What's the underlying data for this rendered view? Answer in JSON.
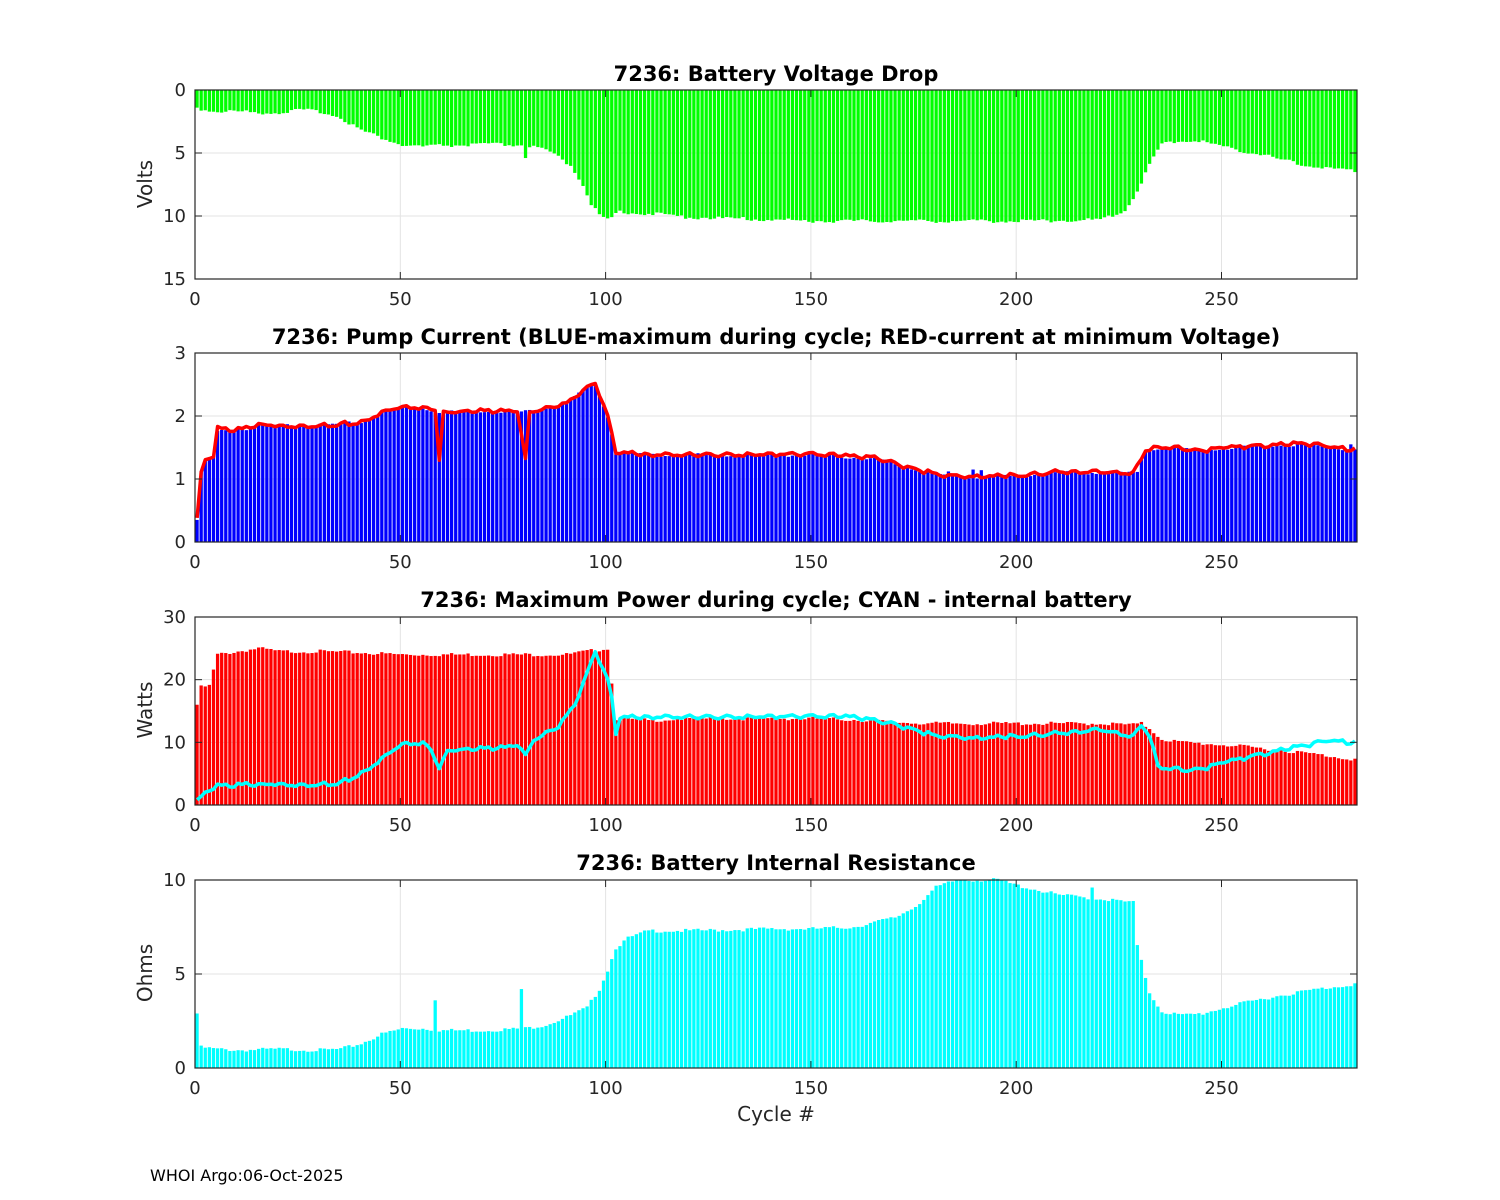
{
  "footer": "WHOI Argo:06-Oct-2025",
  "xlabel": "Cycle #",
  "colors": {
    "voltage": "#00ff00",
    "pump_bar": "#0000ff",
    "pump_line": "#ff0000",
    "power_bar": "#ff0000",
    "power_line": "#00ffff",
    "resistance": "#00ffff"
  },
  "chart_data": [
    {
      "id": "voltage",
      "type": "bar",
      "title": "7236: Battery Voltage Drop",
      "ylabel": "Volts",
      "xlim": [
        0,
        283
      ],
      "ylim": [
        0,
        15
      ],
      "y_reversed": true,
      "xticks": [
        0,
        50,
        100,
        150,
        200,
        250
      ],
      "yticks": [
        0,
        5,
        10,
        15
      ],
      "grid": true,
      "series": [
        {
          "name": "voltage drop",
          "color": "#00ff00",
          "profile": [
            [
              0,
              1.4
            ],
            [
              2,
              1.6
            ],
            [
              5,
              1.7
            ],
            [
              10,
              1.7
            ],
            [
              15,
              1.8
            ],
            [
              20,
              1.8
            ],
            [
              25,
              1.6
            ],
            [
              30,
              1.7
            ],
            [
              35,
              2.2
            ],
            [
              40,
              3.2
            ],
            [
              45,
              3.8
            ],
            [
              50,
              4.4
            ],
            [
              55,
              4.5
            ],
            [
              60,
              4.4
            ],
            [
              65,
              4.4
            ],
            [
              70,
              4.3
            ],
            [
              80,
              4.4
            ],
            [
              85,
              4.8
            ],
            [
              88,
              5.3
            ],
            [
              91,
              6.0
            ],
            [
              94,
              7.5
            ],
            [
              96,
              9.0
            ],
            [
              98,
              10.0
            ],
            [
              100,
              10.3
            ],
            [
              103,
              9.7
            ],
            [
              110,
              9.8
            ],
            [
              120,
              10.1
            ],
            [
              150,
              10.4
            ],
            [
              200,
              10.4
            ],
            [
              220,
              10.3
            ],
            [
              226,
              9.6
            ],
            [
              229,
              8.0
            ],
            [
              232,
              5.9
            ],
            [
              235,
              4.3
            ],
            [
              240,
              4.0
            ],
            [
              245,
              4.1
            ],
            [
              250,
              4.5
            ],
            [
              260,
              5.2
            ],
            [
              270,
              6.0
            ],
            [
              283,
              6.5
            ]
          ],
          "spikes": [
            [
              80,
              5.4
            ]
          ]
        }
      ]
    },
    {
      "id": "pump",
      "type": "bar",
      "title": "7236: Pump Current (BLUE-maximum during cycle; RED-current at minimum Voltage)",
      "ylabel": "",
      "xlim": [
        0,
        283
      ],
      "ylim": [
        0,
        3
      ],
      "xticks": [
        0,
        50,
        100,
        150,
        200,
        250
      ],
      "yticks": [
        0,
        1,
        2,
        3
      ],
      "grid": true,
      "series": [
        {
          "name": "BLUE-maximum during cycle",
          "kind": "bar",
          "color": "#0000ff",
          "profile": [
            [
              0,
              0.35
            ],
            [
              1,
              1.1
            ],
            [
              2,
              1.3
            ],
            [
              4,
              1.35
            ],
            [
              5,
              1.75
            ],
            [
              8,
              1.78
            ],
            [
              12,
              1.8
            ],
            [
              15,
              1.85
            ],
            [
              20,
              1.85
            ],
            [
              30,
              1.85
            ],
            [
              40,
              1.9
            ],
            [
              45,
              2.05
            ],
            [
              50,
              2.15
            ],
            [
              55,
              2.12
            ],
            [
              60,
              2.06
            ],
            [
              70,
              2.08
            ],
            [
              80,
              2.07
            ],
            [
              90,
              2.2
            ],
            [
              95,
              2.45
            ],
            [
              97,
              2.5
            ],
            [
              100,
              2.0
            ],
            [
              102,
              1.42
            ],
            [
              110,
              1.38
            ],
            [
              150,
              1.38
            ],
            [
              165,
              1.32
            ],
            [
              175,
              1.15
            ],
            [
              182,
              1.05
            ],
            [
              190,
              1.02
            ],
            [
              200,
              1.05
            ],
            [
              210,
              1.1
            ],
            [
              226,
              1.1
            ],
            [
              229,
              1.1
            ],
            [
              231,
              1.45
            ],
            [
              235,
              1.5
            ],
            [
              245,
              1.45
            ],
            [
              250,
              1.48
            ],
            [
              260,
              1.52
            ],
            [
              270,
              1.55
            ],
            [
              283,
              1.45
            ]
          ],
          "spikes": [
            [
              189,
              1.15
            ],
            [
              191,
              1.14
            ],
            [
              183,
              1.12
            ],
            [
              281,
              1.55
            ]
          ]
        },
        {
          "name": "RED-current at minimum Voltage",
          "kind": "line",
          "color": "#ff0000",
          "profile": [
            [
              0,
              0.35
            ],
            [
              1,
              1.1
            ],
            [
              2,
              1.3
            ],
            [
              4,
              1.35
            ],
            [
              5,
              1.8
            ],
            [
              8,
              1.78
            ],
            [
              12,
              1.8
            ],
            [
              15,
              1.87
            ],
            [
              20,
              1.85
            ],
            [
              30,
              1.85
            ],
            [
              40,
              1.9
            ],
            [
              45,
              2.07
            ],
            [
              50,
              2.15
            ],
            [
              55,
              2.12
            ],
            [
              58,
              2.1
            ],
            [
              59,
              1.3
            ],
            [
              60,
              2.06
            ],
            [
              70,
              2.08
            ],
            [
              78,
              2.08
            ],
            [
              80,
              1.3
            ],
            [
              81,
              2.05
            ],
            [
              90,
              2.2
            ],
            [
              95,
              2.45
            ],
            [
              97,
              2.52
            ],
            [
              100,
              2.0
            ],
            [
              102,
              1.43
            ],
            [
              110,
              1.38
            ],
            [
              150,
              1.4
            ],
            [
              165,
              1.33
            ],
            [
              175,
              1.15
            ],
            [
              182,
              1.05
            ],
            [
              190,
              1.03
            ],
            [
              200,
              1.06
            ],
            [
              210,
              1.12
            ],
            [
              228,
              1.1
            ],
            [
              231,
              1.45
            ],
            [
              235,
              1.52
            ],
            [
              245,
              1.45
            ],
            [
              250,
              1.5
            ],
            [
              260,
              1.53
            ],
            [
              270,
              1.56
            ],
            [
              283,
              1.45
            ]
          ]
        }
      ]
    },
    {
      "id": "power",
      "type": "bar",
      "title": "7236: Maximum Power during cycle; CYAN - internal battery",
      "ylabel": "Watts",
      "xlim": [
        0,
        283
      ],
      "ylim": [
        0,
        30
      ],
      "xticks": [
        0,
        50,
        100,
        150,
        200,
        250
      ],
      "yticks": [
        0,
        10,
        20,
        30
      ],
      "grid": true,
      "series": [
        {
          "name": "maximum power",
          "kind": "bar",
          "color": "#ff0000",
          "profile": [
            [
              0,
              16
            ],
            [
              1,
              18.8
            ],
            [
              3,
              19
            ],
            [
              5,
              24
            ],
            [
              10,
              24.5
            ],
            [
              15,
              25
            ],
            [
              20,
              24.5
            ],
            [
              30,
              24.5
            ],
            [
              40,
              24.3
            ],
            [
              50,
              24
            ],
            [
              60,
              24
            ],
            [
              70,
              24
            ],
            [
              80,
              24
            ],
            [
              90,
              24
            ],
            [
              95,
              24.5
            ],
            [
              100,
              25
            ],
            [
              102,
              13.8
            ],
            [
              110,
              13.5
            ],
            [
              120,
              13.8
            ],
            [
              150,
              13.8
            ],
            [
              160,
              13.6
            ],
            [
              170,
              13.2
            ],
            [
              180,
              13
            ],
            [
              200,
              13
            ],
            [
              220,
              13
            ],
            [
              228,
              12.8
            ],
            [
              230,
              13
            ],
            [
              232,
              12.2
            ],
            [
              235,
              10.5
            ],
            [
              240,
              10
            ],
            [
              250,
              9.6
            ],
            [
              260,
              9
            ],
            [
              270,
              8.3
            ],
            [
              283,
              7.2
            ]
          ]
        },
        {
          "name": "CYAN - internal battery",
          "kind": "line",
          "color": "#00ffff",
          "profile": [
            [
              0,
              0.5
            ],
            [
              2,
              2
            ],
            [
              4,
              2.5
            ],
            [
              5,
              3
            ],
            [
              10,
              3.2
            ],
            [
              15,
              3.3
            ],
            [
              20,
              3.4
            ],
            [
              25,
              3.3
            ],
            [
              30,
              3.3
            ],
            [
              35,
              3.6
            ],
            [
              40,
              5
            ],
            [
              45,
              7.5
            ],
            [
              50,
              9.8
            ],
            [
              55,
              9.8
            ],
            [
              57,
              8.8
            ],
            [
              59,
              5.8
            ],
            [
              61,
              8.7
            ],
            [
              70,
              9
            ],
            [
              75,
              9.2
            ],
            [
              78,
              9.6
            ],
            [
              80,
              7.8
            ],
            [
              82,
              10.3
            ],
            [
              88,
              12.5
            ],
            [
              92,
              16
            ],
            [
              95,
              21
            ],
            [
              97,
              24.5
            ],
            [
              100,
              20
            ],
            [
              101,
              17
            ],
            [
              102,
              11.5
            ],
            [
              103,
              14
            ],
            [
              110,
              14
            ],
            [
              150,
              14.2
            ],
            [
              160,
              14
            ],
            [
              170,
              12.8
            ],
            [
              180,
              11
            ],
            [
              190,
              10.6
            ],
            [
              200,
              11
            ],
            [
              210,
              11.5
            ],
            [
              220,
              12
            ],
            [
              228,
              11
            ],
            [
              230,
              12.8
            ],
            [
              232,
              11
            ],
            [
              234,
              6.2
            ],
            [
              240,
              5.6
            ],
            [
              245,
              5.8
            ],
            [
              250,
              6.8
            ],
            [
              260,
              8.2
            ],
            [
              270,
              9.5
            ],
            [
              276,
              10.3
            ],
            [
              283,
              9.8
            ]
          ]
        }
      ]
    },
    {
      "id": "resistance",
      "type": "bar",
      "title": "7236: Battery Internal Resistance",
      "ylabel": "Ohms",
      "xlim": [
        0,
        283
      ],
      "ylim": [
        0,
        10
      ],
      "xticks": [
        0,
        50,
        100,
        150,
        200,
        250
      ],
      "yticks": [
        0,
        5,
        10
      ],
      "grid": true,
      "series": [
        {
          "name": "internal resistance",
          "color": "#00ffff",
          "profile": [
            [
              0,
              2.9
            ],
            [
              1,
              1.1
            ],
            [
              5,
              1.0
            ],
            [
              10,
              0.95
            ],
            [
              20,
              1.0
            ],
            [
              30,
              0.95
            ],
            [
              35,
              1.0
            ],
            [
              40,
              1.3
            ],
            [
              45,
              1.8
            ],
            [
              50,
              2.1
            ],
            [
              55,
              2.1
            ],
            [
              60,
              2.0
            ],
            [
              70,
              2.0
            ],
            [
              80,
              2.1
            ],
            [
              85,
              2.3
            ],
            [
              90,
              2.7
            ],
            [
              95,
              3.2
            ],
            [
              98,
              4.2
            ],
            [
              100,
              5.2
            ],
            [
              102,
              6.4
            ],
            [
              105,
              6.9
            ],
            [
              110,
              7.3
            ],
            [
              120,
              7.3
            ],
            [
              140,
              7.4
            ],
            [
              150,
              7.4
            ],
            [
              160,
              7.5
            ],
            [
              170,
              8.0
            ],
            [
              175,
              8.6
            ],
            [
              180,
              9.6
            ],
            [
              185,
              10
            ],
            [
              195,
              10
            ],
            [
              200,
              9.7
            ],
            [
              210,
              9.2
            ],
            [
              220,
              9.0
            ],
            [
              228,
              8.8
            ],
            [
              229,
              6.5
            ],
            [
              232,
              4.0
            ],
            [
              235,
              3.0
            ],
            [
              240,
              2.8
            ],
            [
              245,
              2.9
            ],
            [
              250,
              3.2
            ],
            [
              260,
              3.7
            ],
            [
              270,
              4.1
            ],
            [
              283,
              4.5
            ]
          ],
          "spikes": [
            [
              58,
              3.6
            ],
            [
              79,
              4.2
            ],
            [
              218,
              9.6
            ]
          ]
        }
      ]
    }
  ]
}
